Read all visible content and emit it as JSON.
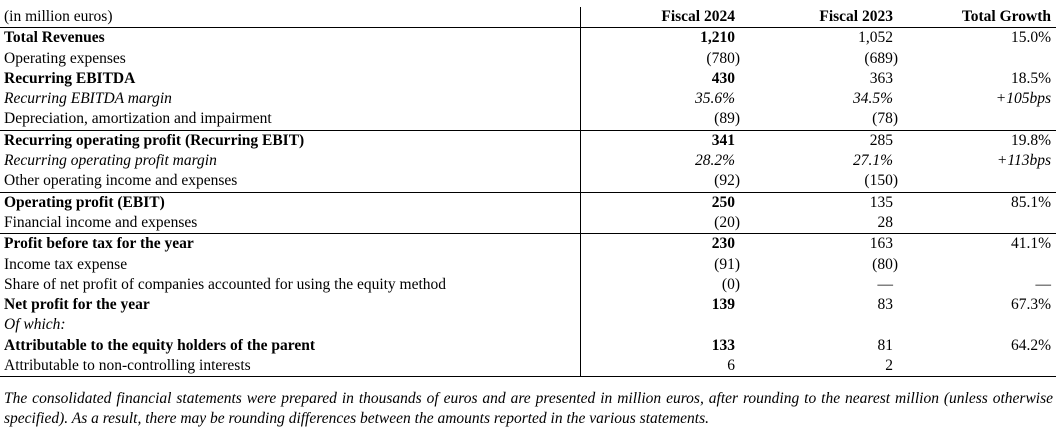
{
  "document": {
    "table": {
      "unit_label": "(in million euros)",
      "columns": [
        "Fiscal 2024",
        "Fiscal 2023",
        "Total Growth"
      ],
      "rows": [
        {
          "label": "Total Revenues",
          "style": "bold",
          "rule_above": false,
          "fiscal_2024": "1,210",
          "fiscal_2023": "1,052",
          "total_growth": "15.0%"
        },
        {
          "label": "Operating expenses",
          "style": "normal",
          "rule_above": false,
          "fiscal_2024": "(780)",
          "fiscal_2023": "(689)",
          "total_growth": ""
        },
        {
          "label": "Recurring EBITDA",
          "style": "bold",
          "rule_above": false,
          "fiscal_2024": "430",
          "fiscal_2023": "363",
          "total_growth": "18.5%"
        },
        {
          "label": "Recurring EBITDA margin",
          "style": "italic",
          "rule_above": false,
          "fiscal_2024": "35.6%",
          "fiscal_2023": "34.5%",
          "total_growth": "+105bps"
        },
        {
          "label": "Depreciation, amortization and impairment",
          "style": "normal",
          "rule_above": false,
          "fiscal_2024": "(89)",
          "fiscal_2023": "(78)",
          "total_growth": ""
        },
        {
          "label": "Recurring operating profit (Recurring EBIT)",
          "style": "bold",
          "rule_above": true,
          "fiscal_2024": "341",
          "fiscal_2023": "285",
          "total_growth": "19.8%"
        },
        {
          "label": "Recurring operating profit margin",
          "style": "italic",
          "rule_above": false,
          "fiscal_2024": "28.2%",
          "fiscal_2023": "27.1%",
          "total_growth": "+113bps"
        },
        {
          "label": "Other operating income and expenses",
          "style": "normal",
          "rule_above": false,
          "fiscal_2024": "(92)",
          "fiscal_2023": "(150)",
          "total_growth": ""
        },
        {
          "label": "Operating profit (EBIT)",
          "style": "bold",
          "rule_above": true,
          "fiscal_2024": "250",
          "fiscal_2023": "135",
          "total_growth": "85.1%"
        },
        {
          "label": "Financial income and expenses",
          "style": "normal",
          "rule_above": false,
          "fiscal_2024": "(20)",
          "fiscal_2023": "28",
          "total_growth": ""
        },
        {
          "label": "Profit before tax for the year",
          "style": "bold",
          "rule_above": true,
          "fiscal_2024": "230",
          "fiscal_2023": "163",
          "total_growth": "41.1%"
        },
        {
          "label": "Income tax expense",
          "style": "normal",
          "rule_above": false,
          "fiscal_2024": "(91)",
          "fiscal_2023": "(80)",
          "total_growth": ""
        },
        {
          "label": "Share of net profit of companies accounted for using the equity method",
          "style": "normal",
          "rule_above": false,
          "fiscal_2024": "(0)",
          "fiscal_2023": "—",
          "total_growth": "—"
        },
        {
          "label": "Net profit for the year",
          "style": "bold",
          "rule_above": false,
          "fiscal_2024": "139",
          "fiscal_2023": "83",
          "total_growth": "67.3%"
        },
        {
          "label": "Of which:",
          "style": "italic",
          "rule_above": false,
          "fiscal_2024": "",
          "fiscal_2023": "",
          "total_growth": ""
        },
        {
          "label": "Attributable to the equity holders of the parent",
          "style": "bold",
          "rule_above": false,
          "fiscal_2024": "133",
          "fiscal_2023": "81",
          "total_growth": "64.2%"
        },
        {
          "label": "Attributable to non-controlling interests",
          "style": "normal",
          "rule_above": false,
          "fiscal_2024": "6",
          "fiscal_2023": "2",
          "total_growth": ""
        }
      ]
    },
    "footnote": "The consolidated financial statements were prepared in thousands of euros and are presented in million euros, after rounding to the nearest million (unless otherwise specified). As a result, there may be rounding differences between the amounts reported in the various statements."
  }
}
